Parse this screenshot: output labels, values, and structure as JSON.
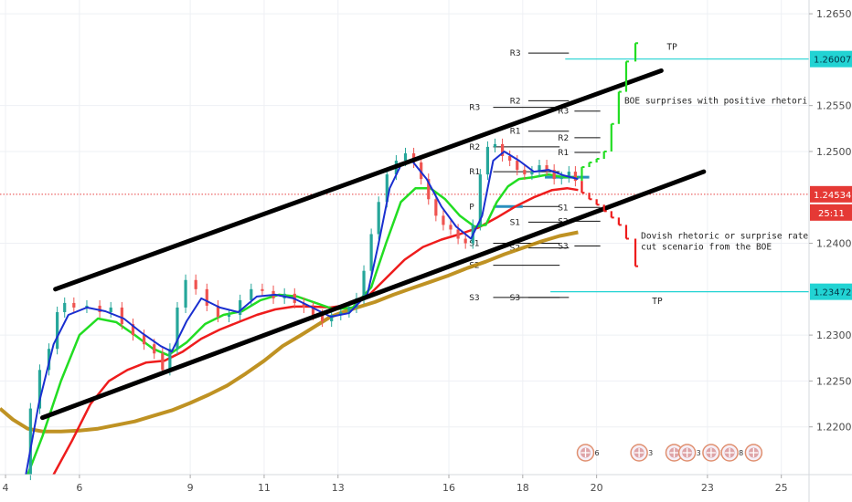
{
  "chart_data": {
    "type": "line",
    "grid": true,
    "y_axis": {
      "position": "right",
      "ticks": [
        "1.26500",
        "1.26007",
        "1.25500",
        "1.25000",
        "1.24534",
        "1.24000",
        "1.23472",
        "1.23000",
        "1.22500",
        "1.22000"
      ],
      "ylim": [
        1.2148,
        1.2665
      ]
    },
    "x_axis": {
      "ticks": [
        "4",
        "6",
        "9",
        "11",
        "13",
        "16",
        "18",
        "20",
        "23",
        "25"
      ],
      "tick_positions": [
        4,
        6,
        9,
        11,
        13,
        16,
        18,
        20,
        23,
        25
      ],
      "xlim": [
        3.85,
        25.75
      ]
    },
    "price": {
      "current": 1.24534,
      "label": "1.24534",
      "timer": "25:11",
      "close": [
        [
          4.55,
          1.2148
        ],
        [
          4.8,
          1.222
        ],
        [
          5.05,
          1.2262
        ],
        [
          5.3,
          1.2285
        ],
        [
          5.5,
          1.2325
        ],
        [
          5.7,
          1.2335
        ],
        [
          6.0,
          1.233
        ],
        [
          6.4,
          1.2332
        ],
        [
          6.7,
          1.2325
        ],
        [
          7.0,
          1.233
        ],
        [
          7.3,
          1.2312
        ],
        [
          7.6,
          1.23
        ],
        [
          7.9,
          1.229
        ],
        [
          8.15,
          1.228
        ],
        [
          8.35,
          1.2262
        ],
        [
          8.55,
          1.2285
        ],
        [
          8.75,
          1.233
        ],
        [
          9.0,
          1.236
        ],
        [
          9.3,
          1.235
        ],
        [
          9.6,
          1.2332
        ],
        [
          9.9,
          1.232
        ],
        [
          10.2,
          1.2322
        ],
        [
          10.5,
          1.2338
        ],
        [
          10.8,
          1.235
        ],
        [
          11.1,
          1.2348
        ],
        [
          11.4,
          1.234
        ],
        [
          11.7,
          1.2345
        ],
        [
          11.95,
          1.2335
        ],
        [
          12.2,
          1.233
        ],
        [
          12.45,
          1.2322
        ],
        [
          12.7,
          1.2315
        ],
        [
          12.95,
          1.2322
        ],
        [
          13.2,
          1.2325
        ],
        [
          13.4,
          1.233
        ],
        [
          13.6,
          1.234
        ],
        [
          13.8,
          1.237
        ],
        [
          14.0,
          1.241
        ],
        [
          14.2,
          1.2445
        ],
        [
          14.45,
          1.2475
        ],
        [
          14.7,
          1.249
        ],
        [
          14.95,
          1.2498
        ],
        [
          15.15,
          1.2488
        ],
        [
          15.35,
          1.247
        ],
        [
          15.55,
          1.2448
        ],
        [
          15.75,
          1.243
        ],
        [
          15.95,
          1.242
        ],
        [
          16.15,
          1.2415
        ],
        [
          16.35,
          1.2405
        ],
        [
          16.55,
          1.24
        ],
        [
          16.75,
          1.242
        ],
        [
          16.95,
          1.2475
        ],
        [
          17.15,
          1.2505
        ],
        [
          17.35,
          1.2508
        ],
        [
          17.55,
          1.2495
        ],
        [
          17.75,
          1.249
        ],
        [
          17.95,
          1.248
        ],
        [
          18.15,
          1.2475
        ],
        [
          18.35,
          1.2478
        ],
        [
          18.55,
          1.2485
        ],
        [
          18.75,
          1.248
        ],
        [
          18.95,
          1.247
        ],
        [
          19.15,
          1.2472
        ],
        [
          19.35,
          1.2478
        ],
        [
          19.5,
          1.2468
        ]
      ],
      "ema_blue": [
        [
          4.55,
          1.2148
        ],
        [
          4.9,
          1.2225
        ],
        [
          5.3,
          1.229
        ],
        [
          5.7,
          1.2322
        ],
        [
          6.2,
          1.233
        ],
        [
          6.7,
          1.2326
        ],
        [
          7.2,
          1.2318
        ],
        [
          7.7,
          1.2302
        ],
        [
          8.2,
          1.2288
        ],
        [
          8.5,
          1.2282
        ],
        [
          8.9,
          1.2315
        ],
        [
          9.3,
          1.234
        ],
        [
          9.8,
          1.233
        ],
        [
          10.3,
          1.2325
        ],
        [
          10.8,
          1.2342
        ],
        [
          11.3,
          1.2344
        ],
        [
          11.8,
          1.234
        ],
        [
          12.3,
          1.233
        ],
        [
          12.8,
          1.232
        ],
        [
          13.3,
          1.2324
        ],
        [
          13.8,
          1.2345
        ],
        [
          14.1,
          1.24
        ],
        [
          14.4,
          1.246
        ],
        [
          14.7,
          1.2485
        ],
        [
          15.0,
          1.249
        ],
        [
          15.4,
          1.247
        ],
        [
          15.8,
          1.244
        ],
        [
          16.2,
          1.2418
        ],
        [
          16.6,
          1.2405
        ],
        [
          16.9,
          1.243
        ],
        [
          17.2,
          1.249
        ],
        [
          17.5,
          1.25
        ],
        [
          17.9,
          1.249
        ],
        [
          18.3,
          1.2478
        ],
        [
          18.7,
          1.248
        ],
        [
          19.1,
          1.2474
        ],
        [
          19.5,
          1.247
        ]
      ],
      "ema_green": [
        [
          4.6,
          1.2148
        ],
        [
          5.0,
          1.219
        ],
        [
          5.5,
          1.225
        ],
        [
          6.0,
          1.23
        ],
        [
          6.5,
          1.2318
        ],
        [
          7.0,
          1.2314
        ],
        [
          7.5,
          1.23
        ],
        [
          8.0,
          1.2285
        ],
        [
          8.4,
          1.2278
        ],
        [
          8.9,
          1.2292
        ],
        [
          9.4,
          1.2312
        ],
        [
          9.9,
          1.2322
        ],
        [
          10.4,
          1.2326
        ],
        [
          10.9,
          1.2338
        ],
        [
          11.4,
          1.2344
        ],
        [
          11.9,
          1.2342
        ],
        [
          12.4,
          1.2335
        ],
        [
          12.9,
          1.2328
        ],
        [
          13.4,
          1.233
        ],
        [
          13.9,
          1.2352
        ],
        [
          14.3,
          1.24
        ],
        [
          14.7,
          1.2445
        ],
        [
          15.1,
          1.246
        ],
        [
          15.5,
          1.246
        ],
        [
          15.9,
          1.2448
        ],
        [
          16.3,
          1.243
        ],
        [
          16.7,
          1.2418
        ],
        [
          17.0,
          1.242
        ],
        [
          17.3,
          1.2445
        ],
        [
          17.6,
          1.2462
        ],
        [
          17.9,
          1.247
        ],
        [
          18.3,
          1.2472
        ],
        [
          18.7,
          1.2475
        ],
        [
          19.1,
          1.2472
        ],
        [
          19.5,
          1.2472
        ]
      ],
      "ema_red": [
        [
          5.3,
          1.2148
        ],
        [
          5.8,
          1.2185
        ],
        [
          6.3,
          1.2225
        ],
        [
          6.8,
          1.225
        ],
        [
          7.3,
          1.2262
        ],
        [
          7.8,
          1.227
        ],
        [
          8.3,
          1.2272
        ],
        [
          8.8,
          1.2282
        ],
        [
          9.3,
          1.2296
        ],
        [
          9.8,
          1.2306
        ],
        [
          10.3,
          1.2314
        ],
        [
          10.8,
          1.2322
        ],
        [
          11.3,
          1.2328
        ],
        [
          11.8,
          1.2331
        ],
        [
          12.3,
          1.2331
        ],
        [
          12.8,
          1.233
        ],
        [
          13.3,
          1.2333
        ],
        [
          13.8,
          1.2342
        ],
        [
          14.3,
          1.2362
        ],
        [
          14.8,
          1.2382
        ],
        [
          15.3,
          1.2396
        ],
        [
          15.8,
          1.2404
        ],
        [
          16.3,
          1.241
        ],
        [
          16.8,
          1.2417
        ],
        [
          17.3,
          1.2428
        ],
        [
          17.8,
          1.244
        ],
        [
          18.3,
          1.245
        ],
        [
          18.8,
          1.2458
        ],
        [
          19.2,
          1.246
        ],
        [
          19.5,
          1.2458
        ]
      ],
      "ema_gold": [
        [
          3.85,
          1.222
        ],
        [
          4.2,
          1.2208
        ],
        [
          4.6,
          1.2198
        ],
        [
          5.0,
          1.2195
        ],
        [
          5.5,
          1.2195
        ],
        [
          6.0,
          1.2196
        ],
        [
          6.5,
          1.2198
        ],
        [
          7.0,
          1.2202
        ],
        [
          7.5,
          1.2206
        ],
        [
          8.0,
          1.2212
        ],
        [
          8.5,
          1.2218
        ],
        [
          9.0,
          1.2226
        ],
        [
          9.5,
          1.2235
        ],
        [
          10.0,
          1.2245
        ],
        [
          10.5,
          1.2258
        ],
        [
          11.0,
          1.2272
        ],
        [
          11.5,
          1.2288
        ],
        [
          12.0,
          1.23
        ],
        [
          12.4,
          1.231
        ],
        [
          12.8,
          1.232
        ],
        [
          13.2,
          1.2326
        ],
        [
          13.6,
          1.2331
        ],
        [
          14.0,
          1.2336
        ],
        [
          14.5,
          1.2344
        ],
        [
          15.0,
          1.2351
        ],
        [
          15.5,
          1.2358
        ],
        [
          16.0,
          1.2365
        ],
        [
          16.5,
          1.2373
        ],
        [
          17.0,
          1.238
        ],
        [
          17.5,
          1.2388
        ],
        [
          18.0,
          1.2395
        ],
        [
          18.5,
          1.2402
        ],
        [
          19.0,
          1.2408
        ],
        [
          19.5,
          1.2412
        ]
      ]
    },
    "channel": {
      "upper": [
        [
          5.35,
          1.235
        ],
        [
          21.75,
          1.2588
        ]
      ],
      "lower": [
        [
          5.0,
          1.221
        ],
        [
          22.9,
          1.2478
        ]
      ]
    },
    "scenario_bullish": {
      "bars": [
        [
          19.6,
          1.2483
        ],
        [
          19.8,
          1.2488
        ],
        [
          20.0,
          1.2492
        ],
        [
          20.2,
          1.25
        ],
        [
          20.4,
          1.253
        ],
        [
          20.6,
          1.2565
        ],
        [
          20.8,
          1.2598
        ],
        [
          21.05,
          1.2618
        ]
      ],
      "text": "BOE surprises with positive rhetori",
      "at": [
        20.75,
        1.2552
      ],
      "tp_label": "TP",
      "tp_at": [
        21.9,
        1.2611
      ]
    },
    "scenario_bearish": {
      "bars": [
        [
          19.6,
          1.2455
        ],
        [
          19.8,
          1.2448
        ],
        [
          20.0,
          1.2442
        ],
        [
          20.2,
          1.2435
        ],
        [
          20.4,
          1.2428
        ],
        [
          20.6,
          1.242
        ],
        [
          20.8,
          1.2405
        ],
        [
          21.05,
          1.2375
        ]
      ],
      "text_line1": "Dovish rhetoric or surprise rate",
      "text_line2": "cut scenario from the BOE",
      "at": [
        21.2,
        1.2405
      ],
      "tp_label": "TP",
      "tp_at": [
        21.5,
        1.2334
      ]
    },
    "tp_levels": [
      {
        "y": 1.26007,
        "label": "1.26007",
        "from": 19.15
      },
      {
        "y": 1.23472,
        "label": "1.23472",
        "from": 18.75
      }
    ],
    "pivots": [
      {
        "label": "R3",
        "x0": 18.15,
        "x1": 19.25,
        "y": 1.26072,
        "label_x": 17.65
      },
      {
        "label": "R2",
        "x0": 18.15,
        "x1": 19.25,
        "y": 1.25553,
        "label_x": 17.65
      },
      {
        "label": "R3",
        "x0": 17.2,
        "x1": 19.0,
        "y": 1.2548,
        "label_x": 16.55
      },
      {
        "label": "R3",
        "x0": 19.4,
        "x1": 20.1,
        "y": 1.2544,
        "label_x": 18.95
      },
      {
        "label": "R1",
        "x0": 18.15,
        "x1": 19.25,
        "y": 1.25221,
        "label_x": 17.65
      },
      {
        "label": "R2",
        "x0": 17.2,
        "x1": 19.0,
        "y": 1.2505,
        "label_x": 16.55
      },
      {
        "label": "R2",
        "x0": 19.4,
        "x1": 20.1,
        "y": 1.2515,
        "label_x": 18.95
      },
      {
        "label": "R1",
        "x0": 17.2,
        "x1": 19.0,
        "y": 1.2478,
        "label_x": 16.55
      },
      {
        "label": "R1",
        "x0": 19.4,
        "x1": 20.1,
        "y": 1.2499,
        "label_x": 18.95
      },
      {
        "label": "P",
        "x0": 17.2,
        "x1": 19.0,
        "y": 1.244,
        "label_x": 16.55
      },
      {
        "label": "S1",
        "x0": 19.4,
        "x1": 20.1,
        "y": 1.2439,
        "label_x": 18.95
      },
      {
        "label": "S1",
        "x0": 18.15,
        "x1": 19.25,
        "y": 1.2423,
        "label_x": 17.65
      },
      {
        "label": "S2",
        "x0": 19.4,
        "x1": 20.1,
        "y": 1.2424,
        "label_x": 18.95
      },
      {
        "label": "S1",
        "x0": 17.2,
        "x1": 19.0,
        "y": 1.24,
        "label_x": 16.55
      },
      {
        "label": "S3",
        "x0": 19.4,
        "x1": 20.1,
        "y": 1.2397,
        "label_x": 18.95
      },
      {
        "label": "S2",
        "x0": 18.15,
        "x1": 19.25,
        "y": 1.2395,
        "label_x": 17.65
      },
      {
        "label": "S2",
        "x0": 17.2,
        "x1": 19.0,
        "y": 1.2376,
        "label_x": 16.55
      },
      {
        "label": "S3",
        "x0": 17.2,
        "x1": 19.0,
        "y": 1.2341,
        "label_x": 16.55
      },
      {
        "label": "S3",
        "x0": 18.15,
        "x1": 19.25,
        "y": 1.2341,
        "label_x": 17.65
      }
    ],
    "pivot_markers": [
      {
        "x0": 17.25,
        "x1": 18.0,
        "y": 1.244
      },
      {
        "x0": 18.6,
        "x1": 19.8,
        "y": 1.2472
      }
    ],
    "events": [
      {
        "x": 19.7,
        "label": "6"
      },
      {
        "x": 21.15,
        "label": "3"
      },
      {
        "x": 22.1,
        "label": "3"
      },
      {
        "x": 22.45,
        "label": "3"
      },
      {
        "x": 23.1,
        "label": "2"
      },
      {
        "x": 23.6,
        "label": "8"
      },
      {
        "x": 24.25,
        "label": ""
      }
    ]
  }
}
